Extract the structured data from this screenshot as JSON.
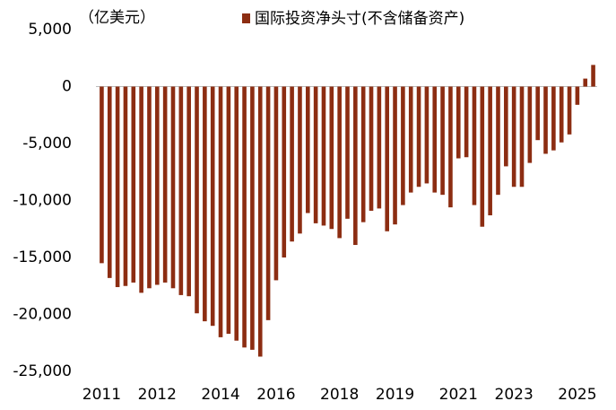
{
  "chart_data": {
    "type": "bar",
    "unit_label": "（亿美元）",
    "categories": [
      "2011",
      null,
      null,
      null,
      null,
      null,
      null,
      "2012",
      null,
      null,
      null,
      null,
      null,
      null,
      null,
      "2014",
      null,
      null,
      null,
      null,
      null,
      null,
      "2016",
      null,
      null,
      null,
      null,
      null,
      null,
      null,
      "2018",
      null,
      null,
      null,
      null,
      null,
      null,
      "2019",
      null,
      null,
      null,
      null,
      null,
      null,
      null,
      "2021",
      null,
      null,
      null,
      null,
      null,
      null,
      "2023",
      null,
      null,
      null,
      null,
      null,
      null,
      null,
      "2025",
      null,
      null
    ],
    "series": [
      {
        "name": "国际投资净头寸(不含储备资产)",
        "color": "#8c2d12",
        "values": [
          -15500,
          -16800,
          -17600,
          -17500,
          -17200,
          -18100,
          -17700,
          -17400,
          -17200,
          -17700,
          -18300,
          -18400,
          -19900,
          -20600,
          -21000,
          -22000,
          -21700,
          -22300,
          -22900,
          -23100,
          -23700,
          -20500,
          -17000,
          -15000,
          -13600,
          -12900,
          -11100,
          -12000,
          -12200,
          -12500,
          -13300,
          -11600,
          -13900,
          -11900,
          -10900,
          -10700,
          -12700,
          -12100,
          -10400,
          -9300,
          -8800,
          -8500,
          -9300,
          -9500,
          -10600,
          -6300,
          -6200,
          -10400,
          -12300,
          -11300,
          -9500,
          -7000,
          -8800,
          -8800,
          -6700,
          -4700,
          -5900,
          -5600,
          -4900,
          -4200,
          -1600,
          700,
          1900
        ]
      }
    ],
    "ylim": [
      -25000,
      5000
    ],
    "yticks": [
      {
        "value": -25000,
        "label": "-25,000"
      },
      {
        "value": -20000,
        "label": "-20,000"
      },
      {
        "value": -15000,
        "label": "-15,000"
      },
      {
        "value": -10000,
        "label": "-10,000"
      },
      {
        "value": -5000,
        "label": "-5,000"
      },
      0,
      {
        "value": 5000,
        "label": "5,000"
      }
    ],
    "grid": false
  }
}
